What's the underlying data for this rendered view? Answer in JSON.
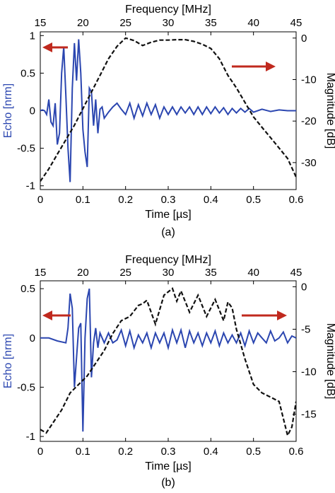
{
  "chart_data": [
    {
      "type": "line",
      "caption": "(a)",
      "xlabel_bottom": "Time [µs]",
      "xlabel_top": "Frequency [MHz]",
      "ylabel_left": "Echo [nrm]",
      "ylabel_right": "Magnitude [dB]",
      "x_bottom_lim": [
        0,
        0.6
      ],
      "x_bottom_ticks": [
        "0",
        "0.1",
        "0.2",
        "0.3",
        "0.4",
        "0.5",
        "0.6"
      ],
      "x_top_lim": [
        15,
        45
      ],
      "x_top_ticks": [
        "15",
        "20",
        "25",
        "30",
        "35",
        "40",
        "45"
      ],
      "y_left_lim": [
        -1.05,
        1.05
      ],
      "y_left_ticks": [
        "-1",
        "-0.5",
        "0",
        "0.5",
        "1"
      ],
      "y_right_lim": [
        -36.5,
        1.5
      ],
      "y_right_ticks": [
        "-30",
        "-20",
        "-10",
        "0"
      ],
      "grid": false,
      "series": [
        {
          "axis": "bottom-left",
          "color": "#2b46b0",
          "style": "solid",
          "x": [
            0,
            0.005,
            0.01,
            0.015,
            0.02,
            0.025,
            0.03,
            0.035,
            0.04,
            0.045,
            0.05,
            0.055,
            0.06,
            0.065,
            0.07,
            0.075,
            0.08,
            0.085,
            0.09,
            0.095,
            0.1,
            0.105,
            0.11,
            0.115,
            0.12,
            0.125,
            0.13,
            0.135,
            0.14,
            0.145,
            0.15,
            0.16,
            0.17,
            0.18,
            0.19,
            0.2,
            0.21,
            0.22,
            0.23,
            0.24,
            0.25,
            0.26,
            0.27,
            0.28,
            0.29,
            0.3,
            0.31,
            0.32,
            0.33,
            0.34,
            0.35,
            0.36,
            0.37,
            0.38,
            0.39,
            0.4,
            0.41,
            0.42,
            0.43,
            0.44,
            0.45,
            0.46,
            0.47,
            0.48,
            0.49,
            0.5,
            0.52,
            0.54,
            0.56,
            0.58,
            0.6
          ],
          "y": [
            0,
            0.01,
            0,
            -0.05,
            0.15,
            -0.15,
            -0.2,
            0.1,
            -0.45,
            -0.3,
            0.5,
            0.85,
            0.2,
            -0.5,
            -0.95,
            0.3,
            0.9,
            0.4,
            0.95,
            0.5,
            -0.25,
            -0.55,
            -0.75,
            0.3,
            0.25,
            -0.2,
            0.15,
            -0.3,
            0.02,
            0.05,
            -0.1,
            -0.02,
            0.05,
            0.1,
            0.02,
            -0.05,
            0.1,
            -0.1,
            0.08,
            -0.07,
            0.1,
            -0.05,
            0.08,
            -0.1,
            0.05,
            -0.05,
            0.05,
            -0.05,
            0.05,
            -0.03,
            0.05,
            -0.05,
            0.05,
            -0.05,
            0.05,
            -0.04,
            0.05,
            -0.03,
            0.04,
            -0.05,
            0.03,
            -0.03,
            0.03,
            -0.02,
            0.03,
            -0.02,
            0.02,
            -0.01,
            0.01,
            0,
            0
          ]
        },
        {
          "axis": "top-right",
          "color": "#111111",
          "style": "dashed",
          "x": [
            15,
            16,
            17,
            18,
            19,
            20,
            21,
            22,
            23,
            24,
            25,
            26,
            27,
            28,
            29,
            30,
            31,
            32,
            33,
            34,
            35,
            36,
            37,
            38,
            39,
            40,
            41,
            42,
            43,
            44,
            45
          ],
          "y": [
            -34.5,
            -31.5,
            -28,
            -24.5,
            -21,
            -17,
            -13,
            -9,
            -5,
            -2,
            0,
            -0.6,
            -1.8,
            -1,
            -0.5,
            -0.5,
            -0.4,
            -0.4,
            -0.8,
            -1.5,
            -2.5,
            -5,
            -9,
            -12,
            -15.5,
            -19,
            -21.5,
            -24,
            -26.5,
            -29,
            -33.5
          ]
        }
      ],
      "annotations": [
        {
          "type": "arrow",
          "direction": "left",
          "color": "#c0291e",
          "meaning": "left axis"
        },
        {
          "type": "arrow",
          "direction": "right",
          "color": "#c0291e",
          "meaning": "right axis"
        }
      ]
    },
    {
      "type": "line",
      "caption": "(b)",
      "xlabel_bottom": "Time [µs]",
      "xlabel_top": "Frequency [MHz]",
      "ylabel_left": "Echo [nrm]",
      "ylabel_right": "Magnitude [dB]",
      "x_bottom_lim": [
        0,
        0.6
      ],
      "x_bottom_ticks": [
        "0",
        "0.1",
        "0.2",
        "0.3",
        "0.4",
        "0.5",
        "0.6"
      ],
      "x_top_lim": [
        15,
        45
      ],
      "x_top_ticks": [
        "15",
        "20",
        "25",
        "30",
        "35",
        "40",
        "45"
      ],
      "y_left_lim": [
        -1.05,
        0.58
      ],
      "y_left_ticks": [
        "-1",
        "-0.5",
        "0",
        "0.5"
      ],
      "y_right_lim": [
        -18.2,
        0.7
      ],
      "y_right_ticks": [
        "-15",
        "-10",
        "-5",
        "0"
      ],
      "grid": false,
      "series": [
        {
          "axis": "bottom-left",
          "color": "#2b46b0",
          "style": "solid",
          "x": [
            0,
            0.02,
            0.04,
            0.06,
            0.065,
            0.07,
            0.075,
            0.08,
            0.085,
            0.09,
            0.095,
            0.1,
            0.105,
            0.11,
            0.115,
            0.12,
            0.125,
            0.13,
            0.135,
            0.14,
            0.15,
            0.16,
            0.17,
            0.18,
            0.19,
            0.2,
            0.21,
            0.22,
            0.23,
            0.24,
            0.25,
            0.26,
            0.27,
            0.28,
            0.29,
            0.3,
            0.31,
            0.32,
            0.33,
            0.34,
            0.35,
            0.36,
            0.37,
            0.38,
            0.39,
            0.4,
            0.41,
            0.42,
            0.43,
            0.44,
            0.45,
            0.46,
            0.47,
            0.48,
            0.49,
            0.5,
            0.51,
            0.52,
            0.53,
            0.54,
            0.55,
            0.56,
            0.57,
            0.58,
            0.59,
            0.6
          ],
          "y": [
            0,
            0,
            -0.03,
            -0.05,
            0.1,
            0.45,
            0.3,
            -0.5,
            -0.2,
            0.1,
            0.15,
            -0.95,
            0,
            0.4,
            0.5,
            -0.4,
            -0.05,
            0.1,
            -0.1,
            0.05,
            -0.05,
            0.05,
            -0.05,
            -0.02,
            0.08,
            -0.08,
            0.07,
            -0.1,
            0.03,
            -0.05,
            0.05,
            -0.1,
            0.05,
            -0.05,
            0.05,
            -0.1,
            0.08,
            -0.05,
            0.08,
            -0.1,
            0.07,
            -0.05,
            0.05,
            -0.08,
            0.05,
            -0.05,
            0.07,
            -0.08,
            0.05,
            -0.05,
            0.03,
            -0.05,
            0.05,
            -0.08,
            0.07,
            -0.05,
            0.05,
            0,
            -0.05,
            0.07,
            -0.03,
            0,
            0.06,
            -0.05,
            0.02,
            0
          ]
        },
        {
          "axis": "top-right",
          "color": "#111111",
          "style": "dashed",
          "x": [
            15,
            15.7,
            16.5,
            17.5,
            18.5,
            19.5,
            20.5,
            21.5,
            22.5,
            23.5,
            24.5,
            25.5,
            26.5,
            27,
            27.5,
            28.5,
            29.5,
            30.5,
            31,
            31.5,
            32.5,
            33.5,
            34.5,
            35.5,
            36.5,
            37,
            37.5,
            38,
            39,
            40,
            41,
            42,
            43,
            43.5,
            44,
            44.5,
            45
          ],
          "y": [
            -16.8,
            -17.2,
            -16,
            -14.5,
            -12.5,
            -11.5,
            -10.5,
            -9,
            -7.5,
            -5.5,
            -4,
            -3.5,
            -2.2,
            -2,
            -1.6,
            -4.4,
            -1,
            -0.2,
            -1.7,
            -0.5,
            -3,
            -1,
            -3.5,
            -1.5,
            -4,
            -1.8,
            -2.5,
            -5,
            -8.5,
            -11.5,
            -12.5,
            -13,
            -13.5,
            -15.5,
            -17.5,
            -16.5,
            -13.5
          ]
        }
      ],
      "annotations": [
        {
          "type": "arrow",
          "direction": "left",
          "color": "#c0291e",
          "meaning": "left axis"
        },
        {
          "type": "arrow",
          "direction": "right",
          "color": "#c0291e",
          "meaning": "right axis"
        }
      ]
    }
  ]
}
